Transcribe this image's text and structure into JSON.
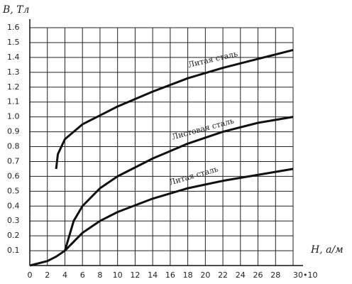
{
  "chart_data": {
    "type": "line",
    "y_label": "B, Тл",
    "x_label": "H, а/м",
    "xlim": [
      0,
      30
    ],
    "ylim": [
      0,
      1.6
    ],
    "xticks": [
      0,
      2,
      4,
      6,
      8,
      10,
      12,
      14,
      16,
      18,
      20,
      22,
      24,
      26,
      28,
      {
        "value": 30,
        "label": "30•10"
      }
    ],
    "yticks": [
      0.1,
      0.2,
      0.3,
      0.4,
      0.5,
      0.6,
      0.7,
      0.8,
      0.9,
      {
        "value": 1,
        "label": "1.0"
      },
      1.1,
      1.2,
      1.3,
      1.4,
      1.5,
      1.6
    ],
    "grid": true,
    "series": [
      {
        "name": "Литая сталь",
        "color": "#111111",
        "x": [
          3,
          3.2,
          4,
          6,
          8,
          10,
          14,
          18,
          22,
          26,
          30
        ],
        "values": [
          0.65,
          0.75,
          0.85,
          0.95,
          1.01,
          1.07,
          1.17,
          1.26,
          1.33,
          1.39,
          1.45
        ]
      },
      {
        "name": "Листовая сталь",
        "color": "#111111",
        "x": [
          4,
          5,
          6,
          8,
          10,
          14,
          18,
          22,
          26,
          30
        ],
        "values": [
          0.1,
          0.3,
          0.4,
          0.52,
          0.6,
          0.72,
          0.82,
          0.9,
          0.96,
          1.0
        ]
      },
      {
        "name": "Литая сталь",
        "color": "#111111",
        "x": [
          0,
          2,
          3,
          4,
          6,
          8,
          10,
          14,
          18,
          22,
          26,
          30
        ],
        "values": [
          0,
          0.03,
          0.06,
          0.1,
          0.22,
          0.3,
          0.36,
          0.45,
          0.52,
          0.57,
          0.61,
          0.65
        ]
      }
    ]
  }
}
